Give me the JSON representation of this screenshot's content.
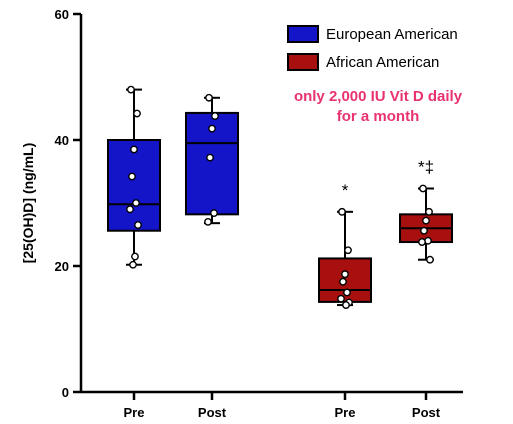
{
  "chart_data": {
    "type": "box",
    "ylabel": "[25(OH)D] (ng/mL)",
    "ylim": [
      0,
      60
    ],
    "y_ticks": [
      "0",
      "20",
      "40",
      "60"
    ],
    "y_tick_values": [
      0,
      20,
      40,
      60
    ],
    "grid": false,
    "legend_position": "top-right",
    "colors": {
      "european": "#1414c8",
      "african": "#a81010",
      "annotation": "#e8336e"
    },
    "legend": [
      {
        "name": "European American",
        "color": "#1414c8"
      },
      {
        "name": "African American",
        "color": "#a81010"
      }
    ],
    "annotation": [
      "only 2,000 IU Vit D daily",
      "for a month"
    ],
    "groups": [
      {
        "label": "Pre",
        "series": "European American",
        "color": "#1414c8",
        "min": 20.2,
        "q1": 25.6,
        "median": 29.8,
        "q3": 40.0,
        "max": 48.0,
        "points": [
          48.0,
          44.2,
          38.5,
          34.2,
          30.0,
          29.0,
          26.5,
          21.5,
          20.2
        ],
        "marker": ""
      },
      {
        "label": "Post",
        "series": "European American",
        "color": "#1414c8",
        "min": 26.8,
        "q1": 28.2,
        "median": 39.5,
        "q3": 44.3,
        "max": 46.7,
        "points": [
          46.7,
          43.8,
          41.8,
          37.2,
          28.4,
          27.0
        ],
        "marker": ""
      },
      {
        "label": "Pre",
        "series": "African American",
        "color": "#a81010",
        "min": 13.8,
        "q1": 14.3,
        "median": 16.2,
        "q3": 21.2,
        "max": 28.6,
        "points": [
          28.6,
          22.5,
          18.7,
          17.5,
          15.8,
          14.8,
          14.2,
          13.8
        ],
        "marker": "*"
      },
      {
        "label": "Post",
        "series": "African American",
        "color": "#a81010",
        "min": 21.0,
        "q1": 23.8,
        "median": 26.0,
        "q3": 28.2,
        "max": 32.3,
        "points": [
          32.3,
          28.6,
          27.2,
          25.6,
          24.0,
          23.8,
          21.0
        ],
        "marker": "*‡"
      }
    ]
  }
}
